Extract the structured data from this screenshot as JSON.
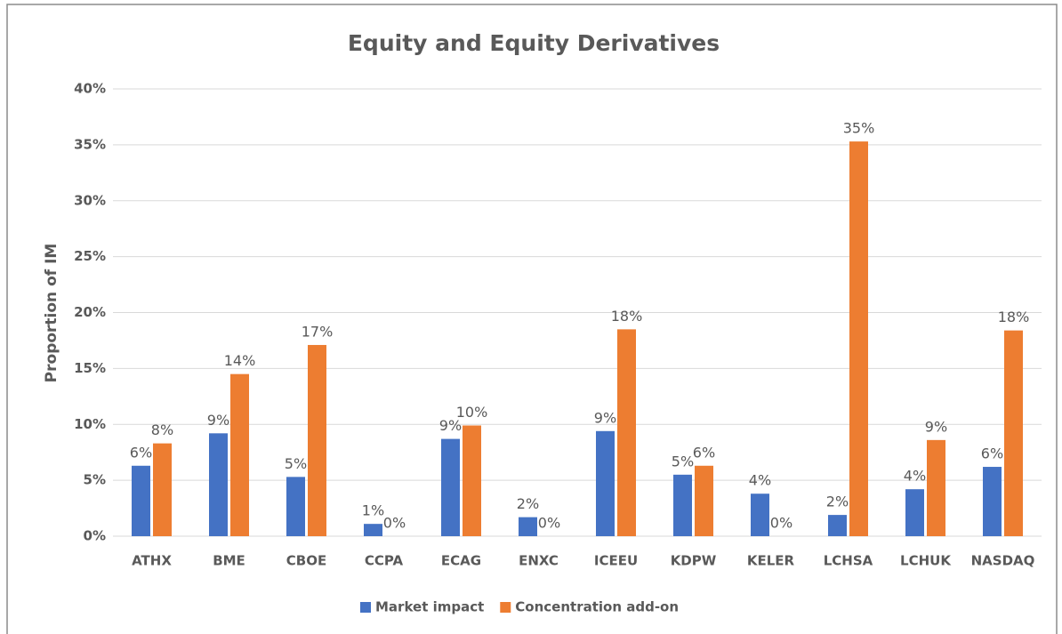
{
  "chart_data": {
    "type": "bar",
    "title": "Equity and Equity Derivatives",
    "y_label": "Proportion of IM",
    "categories": [
      "ATHX",
      "BME",
      "CBOE",
      "CCPA",
      "ECAG",
      "ENXC",
      "ICEEU",
      "KDPW",
      "KELER",
      "LCHSA",
      "LCHUK",
      "NASDAQ"
    ],
    "series": [
      {
        "name": "Market impact",
        "color": "#4472c4",
        "values": [
          6.3,
          9.2,
          5.3,
          1.1,
          8.7,
          1.7,
          9.4,
          5.5,
          3.8,
          1.9,
          4.2,
          6.2
        ],
        "value_labels": [
          "6%",
          "9%",
          "5%",
          "1%",
          "9%",
          "2%",
          "9%",
          "5%",
          "4%",
          "2%",
          "4%",
          "6%"
        ]
      },
      {
        "name": "Concentration add-on",
        "color": "#ed7d31",
        "values": [
          8.3,
          14.5,
          17.1,
          0,
          9.9,
          0,
          18.5,
          6.3,
          0,
          35.3,
          8.6,
          18.4
        ],
        "value_labels": [
          "8%",
          "14%",
          "17%",
          "0%",
          "10%",
          "0%",
          "18%",
          "6%",
          "0%",
          "35%",
          "9%",
          "18%"
        ]
      }
    ],
    "ylim": [
      0,
      40
    ],
    "yticks": [
      {
        "value": 0,
        "label": "0%"
      },
      {
        "value": 5,
        "label": "5%"
      },
      {
        "value": 10,
        "label": "10%"
      },
      {
        "value": 15,
        "label": "15%"
      },
      {
        "value": 20,
        "label": "20%"
      },
      {
        "value": 25,
        "label": "25%"
      },
      {
        "value": 30,
        "label": "30%"
      },
      {
        "value": 35,
        "label": "35%"
      },
      {
        "value": 40,
        "label": "40%"
      }
    ],
    "grid": true,
    "legend": "bottom"
  }
}
